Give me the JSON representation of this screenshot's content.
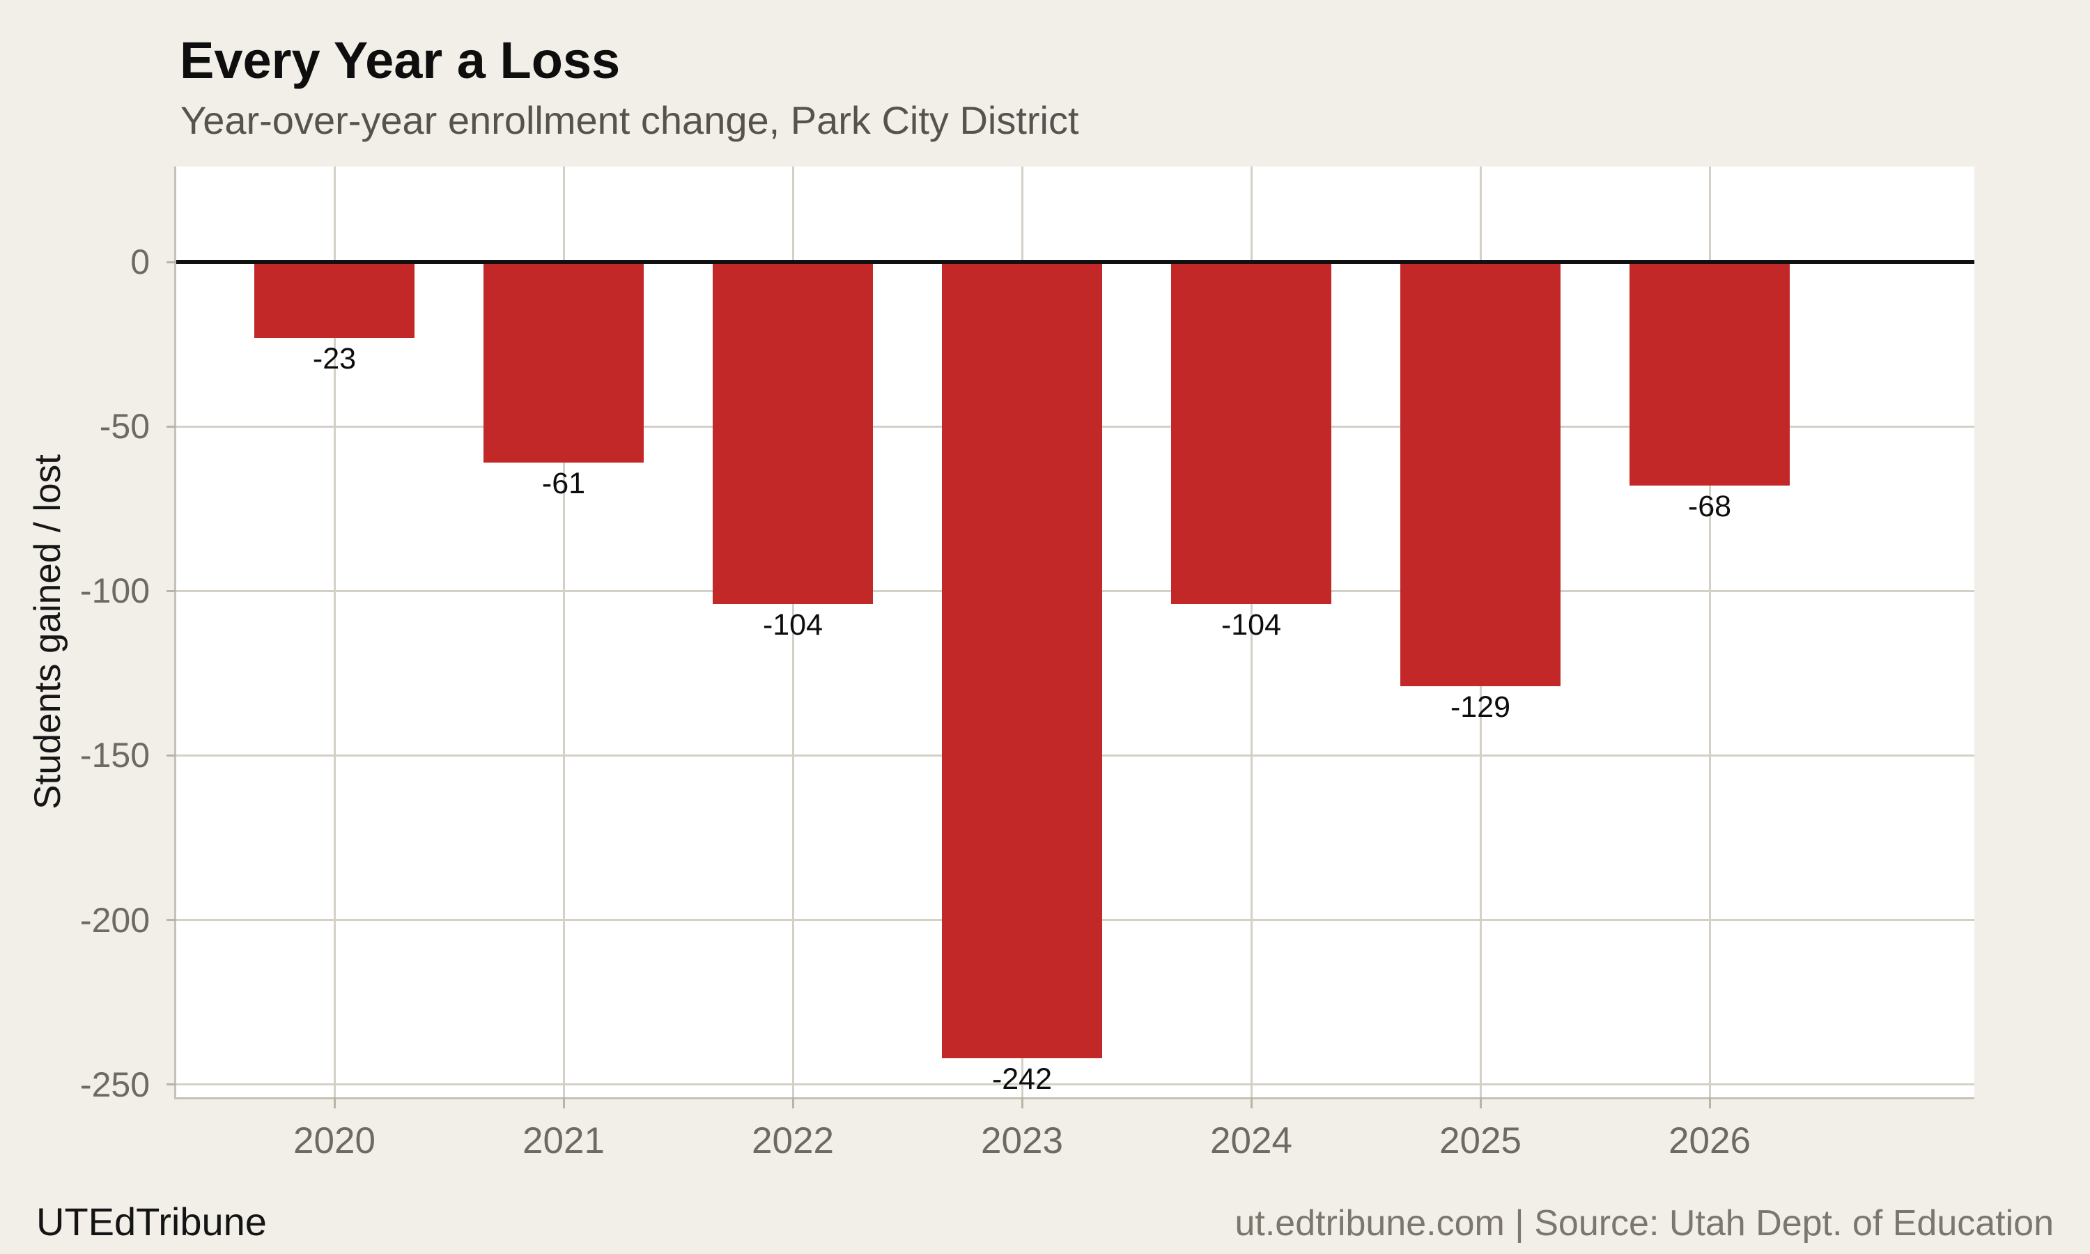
{
  "footer": {
    "brand": "UTEdTribune",
    "source": "ut.edtribune.com | Source: Utah Dept. of Education"
  },
  "chart_data": {
    "type": "bar",
    "title": "Every Year a Loss",
    "subtitle": "Year-over-year enrollment change, Park City District",
    "categories": [
      "2020",
      "2021",
      "2022",
      "2023",
      "2024",
      "2025",
      "2026"
    ],
    "values": [
      -23,
      -61,
      -104,
      -242,
      -104,
      -129,
      -68
    ],
    "bar_labels": [
      "-23",
      "-61",
      "-104",
      "-242",
      "-104",
      "-129",
      "-68"
    ],
    "xlabel": "",
    "ylabel": "Students gained / lost",
    "y_ticks": [
      0,
      -50,
      -100,
      -150,
      -200,
      -250
    ],
    "ylim": [
      -254,
      29
    ],
    "grid": true,
    "legend": false,
    "colors": {
      "bar": "#c32829",
      "background": "#f2efe9",
      "plot_background": "#ffffff",
      "gridline": "#d5d0c7",
      "tick_stub": "#b9b4a9",
      "spine": "#c6c1b6",
      "zero_line": "#111111",
      "axis_text": "#6e6a63",
      "title_text": "#0e0e0e",
      "subtitle_text": "#56534e",
      "value_label_text": "#0d0d0d",
      "source_text": "#7b776f"
    }
  }
}
